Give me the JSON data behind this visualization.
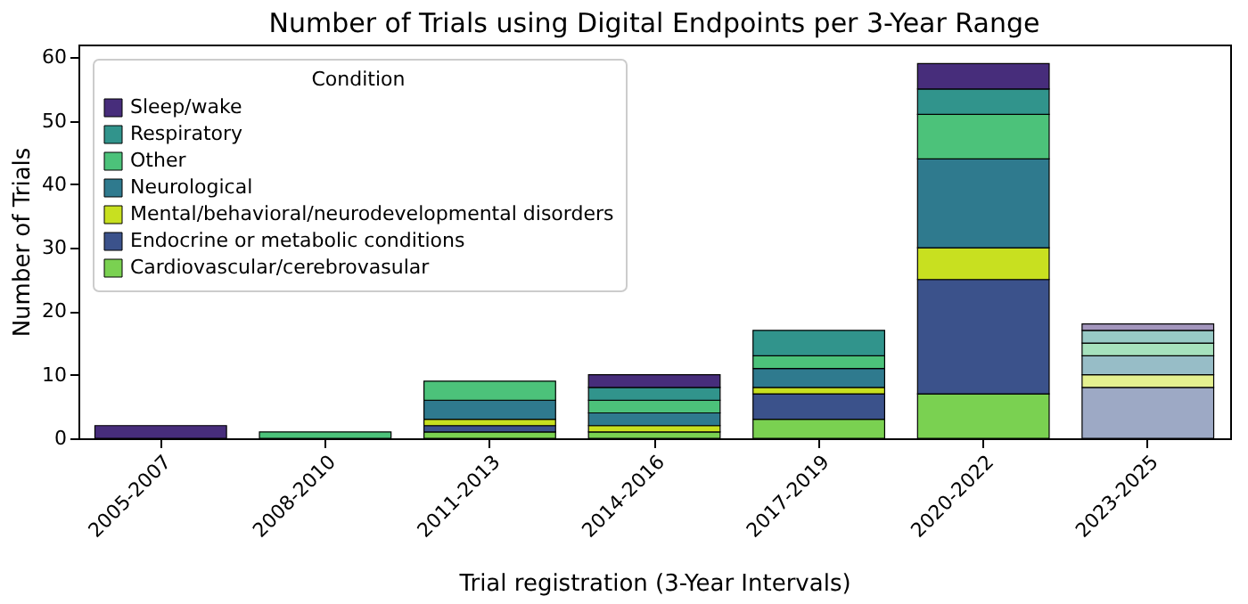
{
  "chart_data": {
    "type": "bar",
    "title": "Number of Trials using Digital Endpoints per 3-Year Range",
    "xlabel": "Trial registration (3-Year Intervals)",
    "ylabel": "Number of Trials",
    "legend_title": "Condition",
    "legend": "top left",
    "stacked": true,
    "grid": false,
    "categories": [
      "2005-2007",
      "2008-2010",
      "2011-2013",
      "2014-2016",
      "2017-2019",
      "2020-2022",
      "2023-2025"
    ],
    "ylim": [
      0,
      62
    ],
    "yticks": [
      0,
      10,
      20,
      30,
      40,
      50,
      60
    ],
    "series": [
      {
        "name": "Cardiovascular/cerebrovasular",
        "color": "#7ad151",
        "colors": [
          null,
          null,
          "#7ad151",
          "#7ad151",
          "#7ad151",
          "#7ad151",
          null
        ],
        "values": [
          0,
          0,
          1,
          1,
          3,
          7,
          0
        ]
      },
      {
        "name": "Endocrine or metabolic conditions",
        "color": "#3b528b",
        "colors": [
          null,
          null,
          "#3b528b",
          null,
          "#3b528b",
          "#3b528b",
          "#9da9c5"
        ],
        "values": [
          0,
          0,
          1,
          0,
          4,
          18,
          8
        ]
      },
      {
        "name": "Mental/behavioral/neurodevelopmental disorders",
        "color": "#c8e020",
        "colors": [
          null,
          null,
          "#c8e020",
          "#c8e020",
          "#c8e020",
          "#c8e020",
          "#e4f090"
        ],
        "values": [
          0,
          0,
          1,
          1,
          1,
          5,
          2
        ]
      },
      {
        "name": "Neurological",
        "color": "#2f7a8e",
        "colors": [
          null,
          null,
          "#2f7a8e",
          "#2f7a8e",
          "#2f7a8e",
          "#2f7a8e",
          "#97bdc7"
        ],
        "values": [
          0,
          0,
          3,
          2,
          3,
          14,
          3
        ]
      },
      {
        "name": "Other",
        "color": "#4cc27a",
        "colors": [
          null,
          "#4cc27a",
          "#4cc27a",
          "#4cc27a",
          "#4cc27a",
          "#4cc27a",
          "#a6e1bd"
        ],
        "values": [
          0,
          1,
          3,
          2,
          2,
          7,
          2
        ]
      },
      {
        "name": "Respiratory",
        "color": "#31948c",
        "colors": [
          null,
          null,
          null,
          "#31948c",
          "#31948c",
          "#31948c",
          "#98cac6"
        ],
        "values": [
          0,
          0,
          0,
          2,
          4,
          4,
          2
        ]
      },
      {
        "name": "Sleep/wake",
        "color": "#472d7b",
        "colors": [
          "#472d7b",
          null,
          null,
          "#472d7b",
          null,
          "#472d7b",
          "#a396bd"
        ],
        "values": [
          2,
          0,
          0,
          2,
          0,
          4,
          1
        ]
      }
    ]
  }
}
